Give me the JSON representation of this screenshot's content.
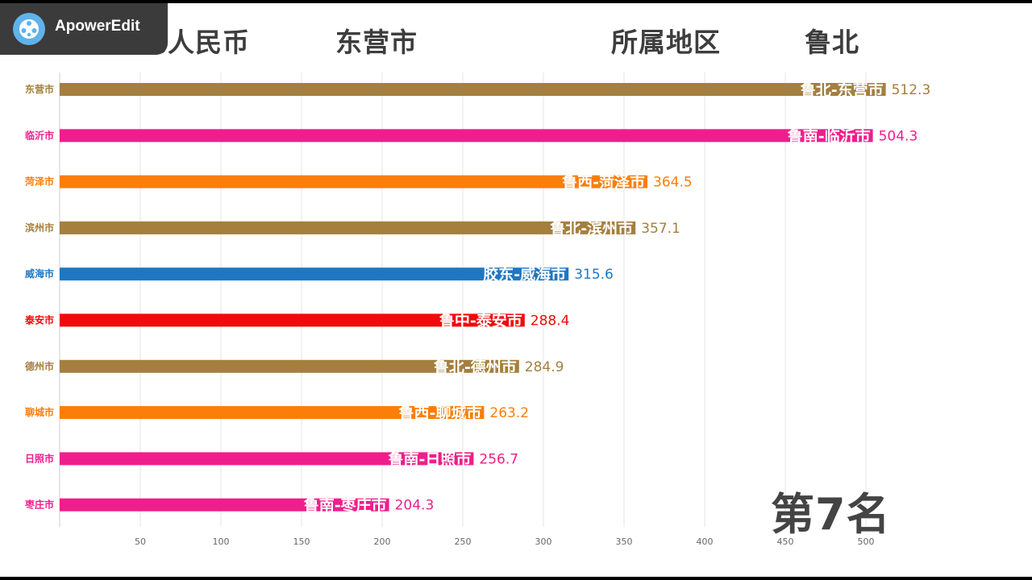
{
  "app": {
    "watermark_text": "ApowerEdit"
  },
  "header": {
    "unit": "单位：亿人民币",
    "city": "东营市",
    "region_label": "所属地区",
    "region_value": "鲁北"
  },
  "rank_text": "第7名",
  "colors": {
    "鲁北": "#a47f3e",
    "鲁南": "#ef1e8c",
    "鲁西": "#fb7e08",
    "胶东": "#1f77c3",
    "鲁中": "#ef0b0b"
  },
  "chart_data": {
    "type": "bar",
    "orientation": "horizontal",
    "categories": [
      "东营市",
      "临沂市",
      "菏泽市",
      "滨州市",
      "威海市",
      "泰安市",
      "德州市",
      "聊城市",
      "日照市",
      "枣庄市"
    ],
    "values": [
      512.3,
      504.3,
      364.5,
      357.1,
      315.6,
      288.4,
      284.9,
      263.2,
      256.7,
      204.3
    ],
    "value_labels": [
      "512.3",
      "504.3",
      "364.5",
      "357.1",
      "315.6",
      "288.4",
      "284.9",
      "263.2",
      "256.7",
      "204.3"
    ],
    "bar_labels": [
      "鲁北-东营市",
      "鲁南-临沂市",
      "鲁西-菏泽市",
      "鲁北-滨州市",
      "胶东-威海市",
      "鲁中-泰安市",
      "鲁北-德州市",
      "鲁西-聊城市",
      "鲁南-日照市",
      "鲁南-枣庄市"
    ],
    "regions": [
      "鲁北",
      "鲁南",
      "鲁西",
      "鲁北",
      "胶东",
      "鲁中",
      "鲁北",
      "鲁西",
      "鲁南",
      "鲁南"
    ],
    "xticks": [
      50,
      100,
      150,
      200,
      250,
      300,
      350,
      400,
      450,
      500
    ],
    "xlim": [
      0,
      520
    ],
    "grid": true
  }
}
